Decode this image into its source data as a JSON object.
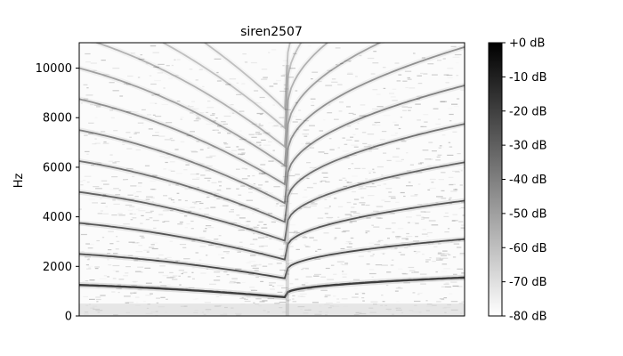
{
  "chart_data": {
    "type": "heatmap",
    "title": "siren2507",
    "xlabel": "",
    "ylabel": "Hz",
    "ylim": [
      0,
      11025
    ],
    "y_ticks": [
      0,
      2000,
      4000,
      6000,
      8000,
      10000
    ],
    "y_tick_labels": [
      "0",
      "2000",
      "4000",
      "6000",
      "8000",
      "10000"
    ],
    "colormap": "gray_r",
    "colorbar": {
      "range": [
        -80,
        0
      ],
      "ticks": [
        0,
        -10,
        -20,
        -30,
        -40,
        -50,
        -60,
        -70,
        -80
      ],
      "tick_labels": [
        "+0 dB",
        "-10 dB",
        "-20 dB",
        "-30 dB",
        "-40 dB",
        "-50 dB",
        "-60 dB",
        "-70 dB",
        "-80 dB"
      ]
    },
    "harmonics": {
      "fundamental_start_hz": 1250,
      "fundamental_min_hz": 750,
      "fundamental_end_hz": 1550,
      "min_at_fraction_of_duration": 0.54,
      "visible_partials": 8
    },
    "colors": {
      "background": "#ffffff",
      "axes": "#000000",
      "band": "#1a1a1a"
    }
  }
}
